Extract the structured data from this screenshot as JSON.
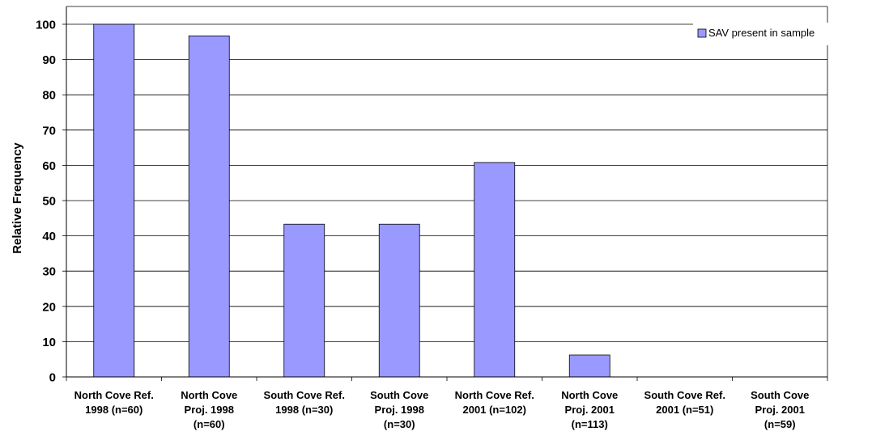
{
  "chart_data": {
    "type": "bar",
    "title": "",
    "xlabel": "",
    "ylabel": "Relative Frequency",
    "ylim": [
      0,
      100
    ],
    "yticks": [
      0,
      10,
      20,
      30,
      40,
      50,
      60,
      70,
      80,
      90,
      100
    ],
    "grid": true,
    "legend_position": "top-right",
    "categories": [
      [
        "North Cove Ref.",
        "1998 (n=60)"
      ],
      [
        "North Cove",
        "Proj. 1998",
        "(n=60)"
      ],
      [
        "South Cove Ref.",
        "1998 (n=30)"
      ],
      [
        "South Cove",
        "Proj. 1998",
        "(n=30)"
      ],
      [
        "North Cove Ref.",
        "2001 (n=102)"
      ],
      [
        "North Cove",
        "Proj. 2001",
        "(n=113)"
      ],
      [
        "South Cove Ref.",
        "2001 (n=51)"
      ],
      [
        "South Cove",
        "Proj. 2001",
        "(n=59)"
      ]
    ],
    "series": [
      {
        "name": "SAV present in sample",
        "color": "#9999ff",
        "values": [
          100,
          96.7,
          43.3,
          43.3,
          60.8,
          6.2,
          0,
          0
        ]
      }
    ]
  }
}
